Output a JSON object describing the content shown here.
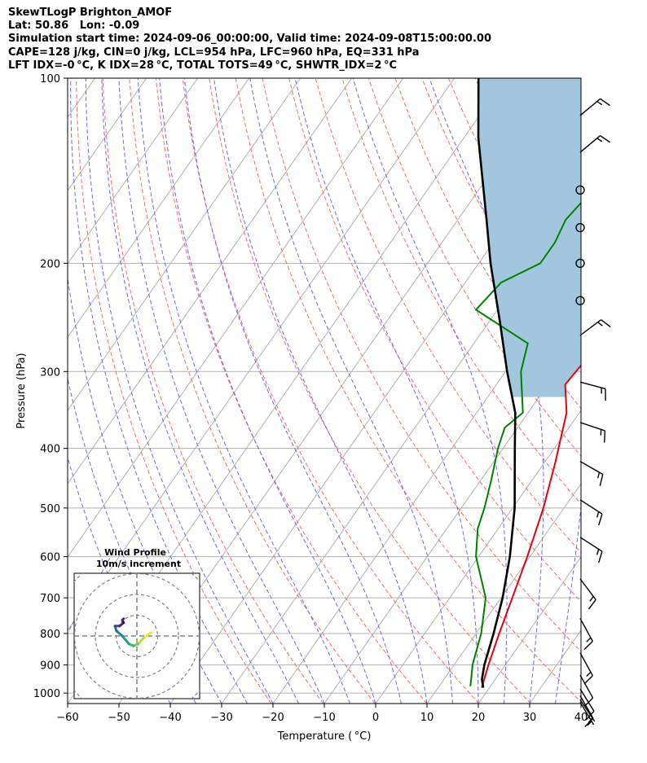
{
  "title_lines": [
    "SkewTLogP Brighton_AMOF",
    "Lat: 50.86   Lon: -0.09",
    "Simulation start time: 2024-09-06_00:00:00, Valid time: 2024-09-08T15:00:00.00",
    "CAPE=128 j/kg, CIN=0 j/kg, LCL=954 hPa, LFC=960 hPa, EQ=331 hPa",
    "LFT IDX=-0 °C, K IDX=28 °C, TOTAL TOTS=49 °C, SHWTR_IDX=2 °C"
  ],
  "chart_data": [
    {
      "type": "line",
      "subtype": "skew-t log-p",
      "xlabel": "Temperature ( °C)",
      "ylabel": "Pressure (hPa)",
      "xlim": [
        -60,
        40
      ],
      "ylim": [
        1040,
        100
      ],
      "y_scale": "log",
      "x_ticks": [
        -60,
        -50,
        -40,
        -30,
        -20,
        -10,
        0,
        10,
        20,
        30,
        40
      ],
      "x_tick_labels": [
        "−60",
        "−50",
        "−40",
        "−30",
        "−20",
        "−10",
        "0",
        "10",
        "20",
        "30",
        "40"
      ],
      "y_ticks": [
        100,
        200,
        300,
        400,
        500,
        600,
        700,
        800,
        900,
        1000
      ],
      "y_tick_labels": [
        "100",
        "200",
        "300",
        "400",
        "500",
        "600",
        "700",
        "800",
        "900",
        "1000"
      ],
      "grid": true,
      "series": [
        {
          "role": "temperature",
          "color": "#e8000b",
          "points": [
            [
              18.5,
              980
            ],
            [
              16.7,
              900
            ],
            [
              14.5,
              800
            ],
            [
              12.2,
              700
            ],
            [
              9.5,
              600
            ],
            [
              6.0,
              500
            ],
            [
              2.0,
              420
            ],
            [
              -2.5,
              350
            ],
            [
              -6.6,
              315
            ],
            [
              -6.1,
              292
            ],
            [
              -4.5,
              270
            ],
            [
              4.0,
              237
            ],
            [
              5.0,
              222
            ],
            [
              5.0,
              200
            ],
            [
              7.0,
              175
            ],
            [
              9.0,
              150
            ],
            [
              11.0,
              130
            ],
            [
              14.0,
              115
            ],
            [
              18.0,
              100
            ]
          ]
        },
        {
          "role": "dewpoint",
          "color": "#008000",
          "points": [
            [
              16.1,
              975
            ],
            [
              15.3,
              950
            ],
            [
              13.6,
              900
            ],
            [
              11.0,
              800
            ],
            [
              7.0,
              700
            ],
            [
              -0.5,
              600
            ],
            [
              -4.0,
              540
            ],
            [
              -5.5,
              500
            ],
            [
              -8.0,
              450
            ],
            [
              -11.0,
              400
            ],
            [
              -12.5,
              370
            ],
            [
              -11.0,
              350
            ],
            [
              -17.0,
              300
            ],
            [
              -19.5,
              270
            ],
            [
              -34.2,
              238
            ],
            [
              -33.0,
              215
            ],
            [
              -28.0,
              200
            ],
            [
              -28.0,
              185
            ],
            [
              -29.0,
              170
            ],
            [
              -28.0,
              155
            ],
            [
              -25.0,
              140
            ],
            [
              -18.0,
              122
            ],
            [
              -10.0,
              100
            ]
          ]
        },
        {
          "role": "parcel",
          "color": "#000000",
          "points": [
            [
              18.8,
              980
            ],
            [
              17.4,
              950
            ],
            [
              15.9,
              900
            ],
            [
              13.4,
              800
            ],
            [
              10.3,
              700
            ],
            [
              6.1,
              600
            ],
            [
              0.4,
              500
            ],
            [
              -7.7,
              400
            ],
            [
              -12.5,
              350
            ],
            [
              -19.7,
              300
            ],
            [
              -27.7,
              250
            ],
            [
              -37.7,
              200
            ],
            [
              -44.4,
              170
            ],
            [
              -49.6,
              150
            ],
            [
              -57.2,
              125
            ],
            [
              -65.3,
              100
            ]
          ]
        }
      ]
    },
    {
      "type": "line",
      "subtype": "hodograph",
      "title": "Wind Profile",
      "subtitle": "10m/s increment",
      "ring_increment": 10,
      "colormap": "viridis",
      "points_uv": [
        [
          2.1,
          0.5
        ],
        [
          1.0,
          -0.3
        ],
        [
          0.2,
          -1.2
        ],
        [
          -0.5,
          -1.5
        ],
        [
          -1.2,
          -1.2
        ],
        [
          -2.2,
          0.0
        ],
        [
          -3.1,
          0.8
        ],
        [
          -3.3,
          1.5
        ],
        [
          -2.6,
          1.5
        ],
        [
          -2.0,
          2.0
        ],
        [
          -2.2,
          2.4
        ],
        [
          -2.0,
          2.6
        ]
      ]
    }
  ],
  "wind_barbs": [
    {
      "level_hPa": 115,
      "u": -12,
      "v": -10
    },
    {
      "level_hPa": 132,
      "u": -12,
      "v": -10
    },
    {
      "level_hPa": 152,
      "u": 0,
      "v": 0
    },
    {
      "level_hPa": 175,
      "u": 0,
      "v": 0
    },
    {
      "level_hPa": 200,
      "u": 0,
      "v": 0
    },
    {
      "level_hPa": 230,
      "u": 0,
      "v": 0
    },
    {
      "level_hPa": 262,
      "u": -12,
      "v": -9
    },
    {
      "level_hPa": 312,
      "u": -15,
      "v": 4
    },
    {
      "level_hPa": 363,
      "u": -15,
      "v": 5
    },
    {
      "level_hPa": 420,
      "u": -14,
      "v": 8
    },
    {
      "level_hPa": 485,
      "u": -14,
      "v": 9
    },
    {
      "level_hPa": 558,
      "u": -14,
      "v": 9
    },
    {
      "level_hPa": 652,
      "u": -9,
      "v": 12
    },
    {
      "level_hPa": 756,
      "u": -6,
      "v": 11
    },
    {
      "level_hPa": 860,
      "u": -6,
      "v": 11
    },
    {
      "level_hPa": 935,
      "u": -5,
      "v": 9
    },
    {
      "level_hPa": 985,
      "u": -5,
      "v": 8
    },
    {
      "level_hPa": 1010,
      "u": -4,
      "v": 7
    },
    {
      "level_hPa": 1025,
      "u": -4,
      "v": 6
    },
    {
      "level_hPa": 1035,
      "u": -3,
      "v": 5
    }
  ],
  "colors": {
    "cape_fill": "#a3c6df",
    "dry_adiabat": "#ff6666",
    "moist_adiabat": "#6666ff",
    "mixing_ratio": "#9966cc",
    "isotherm": "#b0b0b0",
    "hodo_ring": "#808080"
  }
}
